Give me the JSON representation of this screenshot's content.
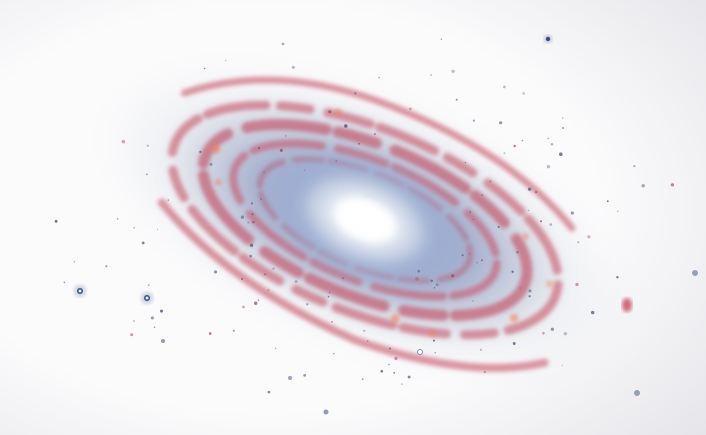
{
  "image": {
    "subject": "spiral-galaxy",
    "style": "inverted-color",
    "colors": {
      "background": "#f6f6f8",
      "vignette": "#e6e6ea",
      "core": "#ffffff",
      "inner_glow": "#b9c7dd",
      "disk": "#8f9fc6",
      "halo": "#c9ced8",
      "dust_lane": "#c2455a",
      "hot_spot": "#f0825a",
      "star": "#3b4f86"
    }
  }
}
